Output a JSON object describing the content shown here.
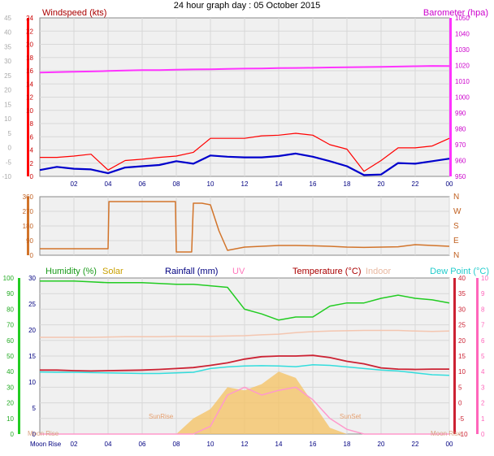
{
  "title": "24 hour graph day : 05 October 2015",
  "colors": {
    "wind_gust": "#ff0000",
    "wind_avg": "#0000cc",
    "barometer": "#ff33ff",
    "direction": "#d2742a",
    "humidity": "#22cc22",
    "solar": "#f6c160",
    "rainfall": "#000080",
    "uv": "#ff99cc",
    "temperature": "#cc2233",
    "indoor": "#f4c6b0",
    "dewpoint": "#33dddd",
    "grid": "#d8d8d8",
    "plotbg": "#f0f0f0",
    "gray": "#c8c8c8"
  },
  "x_ticks": [
    "02",
    "04",
    "06",
    "08",
    "10",
    "12",
    "14",
    "16",
    "18",
    "20",
    "22",
    "00"
  ],
  "panel1": {
    "left_label": "Windspeed (kts)",
    "right_label": "Barometer (hpa)",
    "left_ticks": [
      "24",
      "22",
      "20",
      "18",
      "16",
      "14",
      "12",
      "10",
      "8",
      "6",
      "4",
      "2",
      "0"
    ],
    "outer_ticks": [
      "45",
      "40",
      "35",
      "30",
      "25",
      "20",
      "15",
      "10",
      "5",
      "0",
      "-5",
      "-10"
    ],
    "right_ticks": [
      "1050",
      "1040",
      "1030",
      "1020",
      "1010",
      "1000",
      "990",
      "980",
      "970",
      "960",
      "950"
    ]
  },
  "panel2": {
    "left_ticks": [
      "360",
      "270",
      "180",
      "90",
      "0"
    ],
    "right_ticks": [
      "N",
      "W",
      "S",
      "E",
      "N"
    ]
  },
  "panel3": {
    "labels": {
      "humidity": "Humidity (%)",
      "solar": "Solar",
      "rainfall": "Rainfall (mm)",
      "uv": "UV",
      "temperature": "Temperature (°C)",
      "indoor": "Indoor",
      "dewpoint": "Dew Point (°C)"
    },
    "humidity_ticks": [
      "100",
      "90",
      "80",
      "70",
      "60",
      "50",
      "40",
      "30",
      "20",
      "10",
      "0"
    ],
    "rain_ticks": [
      "30",
      "25",
      "20",
      "15",
      "10",
      "5",
      "0"
    ],
    "temp_ticks": [
      "40",
      "35",
      "30",
      "25",
      "20",
      "15",
      "10",
      "5",
      "0",
      "-5",
      "-10"
    ],
    "uv_ticks": [
      "10",
      "9",
      "8",
      "7",
      "6",
      "5",
      "4",
      "3",
      "2",
      "1",
      "0"
    ],
    "annotations": {
      "sunrise": "SunRise",
      "sunset": "SunSet",
      "moonrise": "Moon Rise"
    }
  },
  "chart_data": [
    {
      "type": "line",
      "title": "24 hour graph day : 05 October 2015",
      "ylabel": "Windspeed (kts)",
      "ylim": [
        0,
        25
      ],
      "y2label": "Barometer (hpa)",
      "y2lim": [
        950,
        1050
      ],
      "x_hours": [
        0,
        1,
        2,
        3,
        4,
        5,
        6,
        7,
        8,
        9,
        10,
        11,
        12,
        13,
        14,
        15,
        16,
        17,
        18,
        19,
        20,
        21,
        22,
        23,
        24
      ],
      "series": [
        {
          "name": "Windspeed (kts)",
          "values": [
            3,
            3,
            3.2,
            3.5,
            1,
            2.5,
            2.7,
            3,
            3.2,
            3.8,
            6,
            6,
            6,
            6.4,
            6.5,
            6.8,
            6.5,
            5,
            4.3,
            0.8,
            2.5,
            4.5,
            4.5,
            4.8,
            6
          ]
        },
        {
          "values": [
            1,
            1.5,
            1.2,
            1.1,
            0.5,
            1.4,
            1.6,
            1.8,
            2.4,
            2,
            3.3,
            3.1,
            3,
            3,
            3.2,
            3.6,
            3.1,
            2.4,
            1.6,
            0.2,
            0.3,
            2.1,
            2,
            2.4,
            2.8
          ]
        },
        {
          "name": "Barometer (hpa)",
          "values": [
            1015.5,
            1015.8,
            1016,
            1016.2,
            1016.5,
            1016.8,
            1017,
            1017.1,
            1017.3,
            1017.5,
            1017.6,
            1017.8,
            1018,
            1018.1,
            1018.3,
            1018.4,
            1018.5,
            1018.7,
            1018.8,
            1019,
            1019.1,
            1019.3,
            1019.5,
            1019.7,
            1019.6
          ]
        }
      ]
    },
    {
      "type": "line",
      "ylim": [
        0,
        360
      ],
      "x_hours": [
        0,
        1,
        2,
        3,
        4,
        4.05,
        5,
        6,
        7,
        7.95,
        8,
        8.5,
        8.9,
        9,
        9.5,
        10,
        10.5,
        11,
        12,
        13,
        14,
        15,
        16,
        17,
        18,
        19,
        20,
        21,
        22,
        23,
        24
      ],
      "series": [
        {
          "values": [
            40,
            40,
            40,
            40,
            40,
            330,
            330,
            330,
            330,
            330,
            20,
            20,
            20,
            320,
            320,
            310,
            150,
            30,
            50,
            55,
            60,
            60,
            58,
            55,
            50,
            48,
            50,
            52,
            65,
            60,
            55
          ]
        }
      ]
    },
    {
      "type": "line",
      "ylim": [
        -10,
        40
      ],
      "x_hours": [
        0,
        1,
        2,
        3,
        4,
        5,
        6,
        7,
        8,
        9,
        10,
        11,
        12,
        13,
        14,
        15,
        16,
        17,
        18,
        19,
        20,
        21,
        22,
        23,
        24
      ],
      "series": [
        {
          "name": "Humidity (%)",
          "values": [
            98,
            98,
            98,
            97.5,
            97,
            97,
            97,
            96.5,
            96,
            96,
            95,
            94,
            80,
            77,
            73,
            75,
            75,
            82,
            84,
            84,
            87,
            89,
            87,
            86,
            84
          ]
        },
        {
          "name": "Temperature (°C)",
          "values": [
            10.5,
            10.5,
            10.3,
            10.2,
            10.3,
            10.4,
            10.5,
            10.7,
            11,
            11.3,
            12,
            12.8,
            14,
            14.8,
            15,
            15,
            15.2,
            14.5,
            13.3,
            12.5,
            11.2,
            10.8,
            10.7,
            10.8,
            10.8
          ]
        },
        {
          "name": "Indoor",
          "values": [
            21,
            21,
            21,
            21,
            21.1,
            21.2,
            21.2,
            21.2,
            21.3,
            21.3,
            21.3,
            21.4,
            21.5,
            21.8,
            22,
            22.5,
            22.8,
            23,
            23.1,
            23.2,
            23.2,
            23.2,
            23,
            22.9,
            23
          ]
        },
        {
          "name": "Dew Point (°C)",
          "values": [
            9.9,
            9.8,
            9.8,
            9.7,
            9.6,
            9.5,
            9.4,
            9.4,
            9.6,
            9.8,
            11,
            11.5,
            11.8,
            11.9,
            11.8,
            11.6,
            12.2,
            12,
            11.5,
            11,
            10.5,
            10.2,
            9.6,
            9,
            8.8
          ]
        },
        {
          "name": "UV",
          "values": [
            0,
            0,
            0,
            0,
            0,
            0,
            0,
            0,
            0,
            0,
            0.5,
            2.5,
            3,
            2.5,
            2.8,
            3,
            2.2,
            1,
            0.3,
            0,
            0,
            0,
            0,
            0,
            0
          ]
        },
        {
          "name": "Solar",
          "values": [
            0,
            0,
            0,
            0,
            0,
            0,
            0,
            0,
            0,
            5,
            8,
            15,
            14,
            16,
            20,
            18,
            10,
            2,
            0,
            0,
            0,
            0,
            0,
            0,
            0
          ]
        }
      ]
    }
  ]
}
